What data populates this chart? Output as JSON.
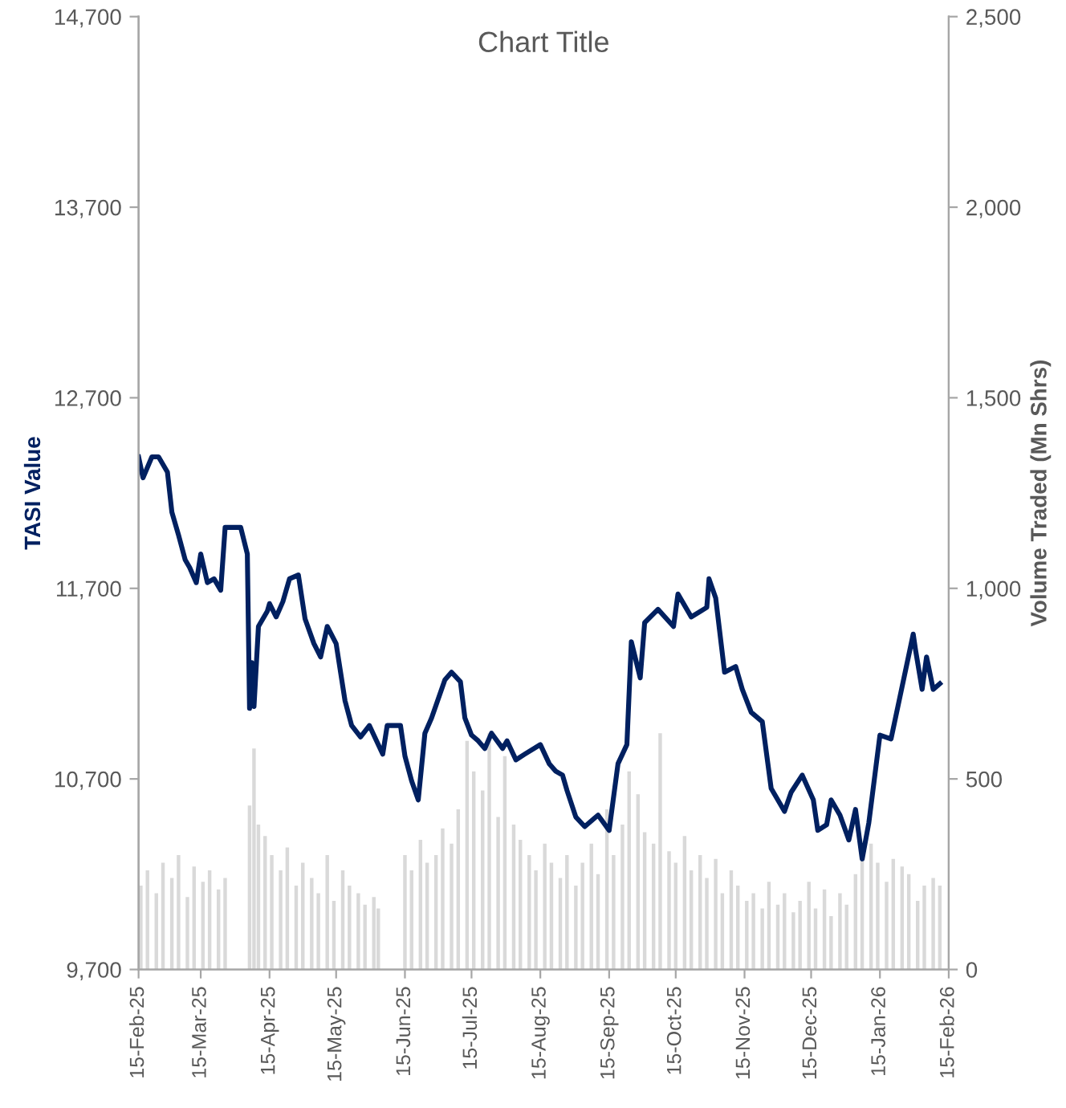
{
  "chart_data": {
    "type": "line",
    "title": "Chart Title",
    "ylabel": "TASI Value",
    "y2label": "Volume Traded (Mn Shrs)",
    "xlim": [
      "2025-02-15",
      "2026-02-15"
    ],
    "xticks": [
      {
        "value": "2025-02-15",
        "label": "15-Feb-25"
      },
      {
        "value": "2025-03-15",
        "label": "15-Mar-25"
      },
      {
        "value": "2025-04-15",
        "label": "15-Apr-25"
      },
      {
        "value": "2025-05-15",
        "label": "15-May-25"
      },
      {
        "value": "2025-06-15",
        "label": "15-Jun-25"
      },
      {
        "value": "2025-07-15",
        "label": "15-Jul-25"
      },
      {
        "value": "2025-08-15",
        "label": "15-Aug-25"
      },
      {
        "value": "2025-09-15",
        "label": "15-Sep-25"
      },
      {
        "value": "2025-10-15",
        "label": "15-Oct-25"
      },
      {
        "value": "2025-11-15",
        "label": "15-Nov-25"
      },
      {
        "value": "2025-12-15",
        "label": "15-Dec-25"
      },
      {
        "value": "2026-01-15",
        "label": "15-Jan-26"
      },
      {
        "value": "2026-02-15",
        "label": "15-Feb-26"
      }
    ],
    "ylim": [
      9700,
      14700
    ],
    "yticks": [
      {
        "value": 9700,
        "label": "9,700"
      },
      {
        "value": 10700,
        "label": "10,700"
      },
      {
        "value": 11700,
        "label": "11,700"
      },
      {
        "value": 12700,
        "label": "12,700"
      },
      {
        "value": 13700,
        "label": "13,700"
      },
      {
        "value": 14700,
        "label": "14,700"
      }
    ],
    "y2lim": [
      0,
      2500
    ],
    "y2ticks": [
      0,
      500,
      {
        "value": 1000,
        "label": "1,000"
      },
      {
        "value": 1500,
        "label": "1,500"
      },
      {
        "value": 2000,
        "label": "2,000"
      },
      {
        "value": 2500,
        "label": "2,500"
      }
    ],
    "grid": false,
    "series": [
      {
        "type": "bar",
        "axis": "y2",
        "color": "#d9d9d9",
        "x": [
          "2025-02-16",
          "2025-02-19",
          "2025-02-23",
          "2025-02-26",
          "2025-03-02",
          "2025-03-05",
          "2025-03-09",
          "2025-03-12",
          "2025-03-16",
          "2025-03-19",
          "2025-03-23",
          "2025-03-26",
          "2025-04-06",
          "2025-04-08",
          "2025-04-10",
          "2025-04-13",
          "2025-04-16",
          "2025-04-20",
          "2025-04-23",
          "2025-04-27",
          "2025-04-30",
          "2025-05-04",
          "2025-05-07",
          "2025-05-11",
          "2025-05-14",
          "2025-05-18",
          "2025-05-21",
          "2025-05-25",
          "2025-05-28",
          "2025-06-01",
          "2025-06-03",
          "2025-06-15",
          "2025-06-18",
          "2025-06-22",
          "2025-06-25",
          "2025-06-29",
          "2025-07-02",
          "2025-07-06",
          "2025-07-09",
          "2025-07-13",
          "2025-07-16",
          "2025-07-20",
          "2025-07-23",
          "2025-07-27",
          "2025-07-30",
          "2025-08-03",
          "2025-08-06",
          "2025-08-10",
          "2025-08-13",
          "2025-08-17",
          "2025-08-20",
          "2025-08-24",
          "2025-08-27",
          "2025-08-31",
          "2025-09-03",
          "2025-09-07",
          "2025-09-10",
          "2025-09-14",
          "2025-09-17",
          "2025-09-21",
          "2025-09-24",
          "2025-09-28",
          "2025-10-01",
          "2025-10-05",
          "2025-10-08",
          "2025-10-12",
          "2025-10-15",
          "2025-10-19",
          "2025-10-22",
          "2025-10-26",
          "2025-10-29",
          "2025-11-02",
          "2025-11-05",
          "2025-11-09",
          "2025-11-12",
          "2025-11-16",
          "2025-11-19",
          "2025-11-23",
          "2025-11-26",
          "2025-11-30",
          "2025-12-03",
          "2025-12-07",
          "2025-12-10",
          "2025-12-14",
          "2025-12-17",
          "2025-12-21",
          "2025-12-24",
          "2025-12-28",
          "2025-12-31",
          "2026-01-04",
          "2026-01-07",
          "2026-01-11",
          "2026-01-14",
          "2026-01-18",
          "2026-01-21",
          "2026-01-25",
          "2026-01-28",
          "2026-02-01",
          "2026-02-04",
          "2026-02-08",
          "2026-02-11"
        ],
        "values": [
          220,
          260,
          200,
          280,
          240,
          300,
          190,
          270,
          230,
          260,
          210,
          240,
          430,
          580,
          380,
          350,
          300,
          260,
          320,
          220,
          280,
          240,
          200,
          300,
          180,
          260,
          220,
          200,
          170,
          190,
          160,
          300,
          260,
          340,
          280,
          300,
          370,
          330,
          420,
          600,
          520,
          470,
          620,
          400,
          560,
          380,
          340,
          300,
          260,
          330,
          280,
          240,
          300,
          220,
          280,
          330,
          250,
          420,
          300,
          380,
          520,
          460,
          360,
          330,
          620,
          310,
          280,
          350,
          260,
          300,
          240,
          290,
          200,
          260,
          220,
          180,
          200,
          160,
          230,
          170,
          200,
          150,
          180,
          230,
          160,
          210,
          140,
          200,
          170,
          250,
          300,
          330,
          280,
          230,
          290,
          270,
          250,
          180,
          220,
          240,
          220
        ]
      },
      {
        "color": "#002060",
        "x": [
          "2025-02-15",
          "2025-02-17",
          "2025-02-21",
          "2025-02-24",
          "2025-02-28",
          "2025-03-02",
          "2025-03-05",
          "2025-03-08",
          "2025-03-10",
          "2025-03-13",
          "2025-03-15",
          "2025-03-18",
          "2025-03-21",
          "2025-03-24",
          "2025-03-26",
          "2025-04-02",
          "2025-04-05",
          "2025-04-06",
          "2025-04-07",
          "2025-04-08",
          "2025-04-10",
          "2025-04-14",
          "2025-04-15",
          "2025-04-18",
          "2025-04-21",
          "2025-04-24",
          "2025-04-28",
          "2025-05-01",
          "2025-05-05",
          "2025-05-08",
          "2025-05-11",
          "2025-05-15",
          "2025-05-19",
          "2025-05-22",
          "2025-05-26",
          "2025-05-30",
          "2025-06-05",
          "2025-06-07",
          "2025-06-13",
          "2025-06-15",
          "2025-06-18",
          "2025-06-21",
          "2025-06-24",
          "2025-06-27",
          "2025-06-30",
          "2025-07-03",
          "2025-07-06",
          "2025-07-10",
          "2025-07-12",
          "2025-07-15",
          "2025-07-18",
          "2025-07-21",
          "2025-07-24",
          "2025-07-29",
          "2025-07-31",
          "2025-08-04",
          "2025-08-08",
          "2025-08-15",
          "2025-08-19",
          "2025-08-22",
          "2025-08-25",
          "2025-08-27",
          "2025-08-31",
          "2025-09-04",
          "2025-09-10",
          "2025-09-15",
          "2025-09-19",
          "2025-09-23",
          "2025-09-25",
          "2025-09-29",
          "2025-10-01",
          "2025-10-07",
          "2025-10-14",
          "2025-10-16",
          "2025-10-22",
          "2025-10-29",
          "2025-10-30",
          "2025-11-02",
          "2025-11-06",
          "2025-11-11",
          "2025-11-14",
          "2025-11-18",
          "2025-11-23",
          "2025-11-27",
          "2025-12-03",
          "2025-12-06",
          "2025-12-11",
          "2025-12-16",
          "2025-12-18",
          "2025-12-22",
          "2025-12-24",
          "2025-12-28",
          "2026-01-01",
          "2026-01-04",
          "2026-01-07",
          "2026-01-10",
          "2026-01-15",
          "2026-01-20",
          "2026-01-24",
          "2026-01-30",
          "2026-01-31",
          "2026-02-03",
          "2026-02-05",
          "2026-02-08",
          "2026-02-11"
        ],
        "values": [
          12390,
          12280,
          12390,
          12390,
          12310,
          12100,
          11980,
          11850,
          11810,
          11730,
          11880,
          11730,
          11750,
          11690,
          12020,
          12020,
          11880,
          11070,
          11310,
          11080,
          11500,
          11580,
          11620,
          11550,
          11630,
          11750,
          11770,
          11540,
          11410,
          11340,
          11500,
          11410,
          11110,
          10980,
          10920,
          10980,
          10830,
          10980,
          10980,
          10820,
          10690,
          10590,
          10940,
          11020,
          11120,
          11220,
          11260,
          11210,
          11020,
          10930,
          10900,
          10860,
          10940,
          10860,
          10900,
          10800,
          10830,
          10880,
          10780,
          10740,
          10720,
          10640,
          10500,
          10450,
          10510,
          10430,
          10780,
          10880,
          11420,
          11230,
          11520,
          11590,
          11500,
          11670,
          11550,
          11600,
          11750,
          11650,
          11260,
          11290,
          11170,
          11050,
          11000,
          10650,
          10530,
          10630,
          10720,
          10590,
          10430,
          10460,
          10590,
          10510,
          10380,
          10540,
          10280,
          10470,
          10930,
          10910,
          11130,
          11460,
          11380,
          11170,
          11340,
          11170,
          11200
        ]
      }
    ]
  }
}
